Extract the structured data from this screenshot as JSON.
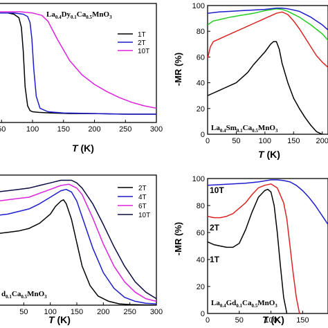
{
  "chart_data": [
    {
      "id": "p1",
      "type": "line",
      "title": "La0.4Dy0.1Ca0.5MnO3",
      "title_parts": [
        {
          "t": "La",
          "sub": false
        },
        {
          "t": "0.4",
          "sub": true
        },
        {
          "t": "Dy",
          "sub": false
        },
        {
          "t": "0.1",
          "sub": true
        },
        {
          "t": "Ca",
          "sub": false
        },
        {
          "t": "0.5",
          "sub": true
        },
        {
          "t": "MnO",
          "sub": false
        },
        {
          "t": "3",
          "sub": true
        }
      ],
      "xlabel": "T (K)",
      "ylabel": "",
      "xlim": [
        43,
        300
      ],
      "ylim": [
        0,
        100
      ],
      "xticks": [
        "50",
        "100",
        "150",
        "200",
        "250",
        "300"
      ],
      "xtick_values": [
        50,
        100,
        150,
        200,
        250,
        300
      ],
      "grid": false,
      "legend": "top-right",
      "series": [
        {
          "name": "1T",
          "color": "#000000",
          "x": [
            43,
            60,
            70,
            78,
            82,
            85,
            88,
            92,
            96,
            100,
            110,
            130,
            160,
            200,
            250,
            300
          ],
          "y": [
            92,
            92,
            91,
            88,
            80,
            60,
            30,
            14,
            10,
            9,
            8.5,
            8,
            7.5,
            7.5,
            7,
            7
          ]
        },
        {
          "name": "2T",
          "color": "#1c1ccc",
          "x": [
            43,
            70,
            85,
            92,
            96,
            99,
            102,
            106,
            112,
            125,
            150,
            200,
            250,
            300
          ],
          "y": [
            92,
            92,
            91,
            89,
            84,
            70,
            45,
            22,
            12,
            9,
            8,
            7.5,
            7,
            7
          ]
        },
        {
          "name": "10T",
          "color": "#dd22dd",
          "x": [
            43,
            80,
            100,
            115,
            125,
            140,
            160,
            180,
            200,
            220,
            240,
            260,
            280,
            300
          ],
          "y": [
            93,
            93,
            92,
            90,
            85,
            70,
            52,
            40,
            32,
            26,
            21,
            17,
            14,
            12
          ]
        }
      ]
    },
    {
      "id": "p2",
      "type": "line",
      "title": "La0.4Sm0.1Ca0.5MnO3",
      "title_parts": [
        {
          "t": "La",
          "sub": false
        },
        {
          "t": "0.4",
          "sub": true
        },
        {
          "t": "Sm",
          "sub": false
        },
        {
          "t": "0.1",
          "sub": true
        },
        {
          "t": "Ca",
          "sub": false
        },
        {
          "t": "0.5",
          "sub": true
        },
        {
          "t": "MnO",
          "sub": false
        },
        {
          "t": "3",
          "sub": true
        }
      ],
      "xlabel": "T (K)",
      "ylabel": "-MR (%)",
      "xlim": [
        0,
        210
      ],
      "ylim": [
        0,
        100
      ],
      "xticks": [
        "0",
        "50",
        "100",
        "150",
        "200"
      ],
      "xtick_values": [
        0,
        50,
        100,
        150,
        200
      ],
      "yticks": [
        "0",
        "20",
        "40",
        "60",
        "80",
        "100"
      ],
      "ytick_values": [
        0,
        20,
        40,
        60,
        80,
        100
      ],
      "grid": false,
      "series": [
        {
          "name": "",
          "color": "#000000",
          "x": [
            0,
            10,
            20,
            30,
            40,
            50,
            60,
            70,
            80,
            90,
            100,
            110,
            115,
            120,
            125,
            130,
            140,
            150,
            160,
            170,
            180,
            190,
            200
          ],
          "y": [
            30,
            32,
            34,
            36,
            38,
            40,
            44,
            48,
            54,
            59,
            64,
            70,
            72,
            72,
            66,
            55,
            40,
            28,
            20,
            13,
            7,
            2,
            0
          ]
        },
        {
          "name": "",
          "color": "#dd2222",
          "x": [
            0,
            5,
            10,
            20,
            30,
            40,
            50,
            60,
            70,
            80,
            90,
            100,
            110,
            120,
            130,
            140,
            150,
            160,
            170,
            180,
            190,
            200,
            210
          ],
          "y": [
            59,
            68,
            72,
            74,
            76,
            78,
            80,
            82,
            84,
            86,
            88,
            90,
            92,
            94,
            95,
            93,
            88,
            82,
            75,
            68,
            61,
            56,
            52
          ]
        },
        {
          "name": "",
          "color": "#22cc22",
          "x": [
            0,
            10,
            20,
            40,
            60,
            80,
            100,
            120,
            130,
            140,
            160,
            180,
            200,
            210
          ],
          "y": [
            85,
            88,
            89,
            91,
            92.5,
            94,
            96,
            97.5,
            97,
            95.5,
            91,
            85,
            78,
            73
          ]
        },
        {
          "name": "",
          "color": "#1c1ccc",
          "x": [
            0,
            20,
            40,
            60,
            80,
            100,
            120,
            130,
            140,
            160,
            180,
            200,
            210
          ],
          "y": [
            94,
            95,
            95.5,
            96,
            96.5,
            97,
            98,
            98,
            97.5,
            95.5,
            91,
            85,
            81
          ]
        }
      ]
    },
    {
      "id": "p3",
      "type": "line",
      "title": "d0.1Ca0.5MnO3",
      "title_parts": [
        {
          "t": "d",
          "sub": false
        },
        {
          "t": "0.1",
          "sub": true
        },
        {
          "t": "Ca",
          "sub": false
        },
        {
          "t": "0.5",
          "sub": true
        },
        {
          "t": "MnO",
          "sub": false
        },
        {
          "t": "3",
          "sub": true
        }
      ],
      "xlabel": "T (K)",
      "ylabel": "",
      "xlim": [
        0,
        300
      ],
      "ylim": [
        0,
        100
      ],
      "xticks": [
        "50",
        "100",
        "150",
        "200",
        "250",
        "300"
      ],
      "xtick_values": [
        50,
        100,
        150,
        200,
        250,
        300
      ],
      "grid": false,
      "legend": "top-right",
      "series": [
        {
          "name": "2T",
          "color": "#000000",
          "x": [
            0,
            20,
            40,
            60,
            80,
            100,
            110,
            120,
            125,
            130,
            140,
            150,
            160,
            175,
            190,
            210,
            230,
            250,
            300
          ],
          "y": [
            55,
            56,
            57,
            59,
            63,
            70,
            76,
            80,
            81,
            78,
            66,
            48,
            30,
            15,
            7,
            3,
            1,
            0.5,
            0
          ]
        },
        {
          "name": "4T",
          "color": "#1c1ccc",
          "x": [
            0,
            20,
            40,
            60,
            80,
            100,
            120,
            130,
            140,
            150,
            160,
            180,
            200,
            220,
            240,
            260,
            280,
            300
          ],
          "y": [
            69,
            70,
            72,
            74,
            78,
            83,
            88,
            89,
            87,
            80,
            68,
            44,
            25,
            13,
            6,
            3,
            1.5,
            1
          ]
        },
        {
          "name": "6T",
          "color": "#dd22dd",
          "x": [
            0,
            20,
            40,
            60,
            80,
            100,
            120,
            135,
            150,
            160,
            180,
            200,
            220,
            240,
            260,
            280,
            300
          ],
          "y": [
            80,
            81,
            82,
            83,
            86,
            89,
            92,
            93,
            90,
            85,
            67,
            47,
            30,
            18,
            10,
            5,
            3
          ]
        },
        {
          "name": "10T",
          "color": "#0a0a40",
          "x": [
            0,
            20,
            40,
            60,
            80,
            100,
            120,
            140,
            150,
            160,
            180,
            200,
            220,
            240,
            260,
            280,
            300
          ],
          "y": [
            87,
            88,
            89,
            90,
            92,
            94,
            96,
            96,
            94,
            90,
            78,
            62,
            45,
            30,
            18,
            10,
            5
          ]
        }
      ]
    },
    {
      "id": "p4",
      "type": "line",
      "title": "La0.4Gd0.1Ca0.5MnO3",
      "title_parts": [
        {
          "t": "La",
          "sub": false
        },
        {
          "t": "0.4",
          "sub": true
        },
        {
          "t": "Gd",
          "sub": false
        },
        {
          "t": "0.1",
          "sub": true
        },
        {
          "t": "Ca",
          "sub": false
        },
        {
          "t": "0.5",
          "sub": true
        },
        {
          "t": "MnO",
          "sub": false
        },
        {
          "t": "3",
          "sub": true
        }
      ],
      "xlabel": "T (K)",
      "ylabel": "-MR (%)",
      "xlim": [
        0,
        190
      ],
      "ylim": [
        0,
        100
      ],
      "xticks": [
        "0",
        "50",
        "100",
        "150"
      ],
      "xtick_values": [
        0,
        50,
        100,
        150
      ],
      "yticks": [
        "0",
        "20",
        "40",
        "60",
        "80",
        "100"
      ],
      "ytick_values": [
        0,
        20,
        40,
        60,
        80,
        100
      ],
      "grid": false,
      "annotations": [
        "10T",
        "2T",
        "1T"
      ],
      "series": [
        {
          "name": "1T",
          "color": "#000000",
          "x": [
            0,
            10,
            20,
            30,
            40,
            50,
            60,
            70,
            80,
            90,
            95,
            100,
            105,
            110,
            115,
            120,
            125
          ],
          "y": [
            53,
            51,
            50,
            49,
            49,
            52,
            62,
            75,
            86,
            91,
            92,
            90,
            80,
            60,
            35,
            12,
            0
          ]
        },
        {
          "name": "2T",
          "color": "#dd2222",
          "x": [
            0,
            10,
            20,
            30,
            40,
            50,
            60,
            70,
            80,
            90,
            100,
            110,
            120,
            125,
            130,
            135,
            140,
            145
          ],
          "y": [
            72,
            71,
            71,
            72,
            74,
            78,
            82,
            88,
            93,
            95,
            96,
            93,
            82,
            70,
            50,
            30,
            12,
            0
          ]
        },
        {
          "name": "10T",
          "color": "#1c1ccc",
          "x": [
            0,
            20,
            40,
            60,
            80,
            100,
            110,
            120,
            130,
            140,
            150,
            160,
            170,
            180,
            190
          ],
          "y": [
            95,
            95.5,
            96,
            96.5,
            97.5,
            99,
            99,
            98.5,
            97.5,
            95,
            91,
            86,
            80,
            73,
            66
          ]
        }
      ]
    }
  ],
  "legend_entries": {
    "p1": [
      "1T",
      "2T",
      "10T"
    ],
    "p3": [
      "2T",
      "4T",
      "6T",
      "10T"
    ]
  }
}
